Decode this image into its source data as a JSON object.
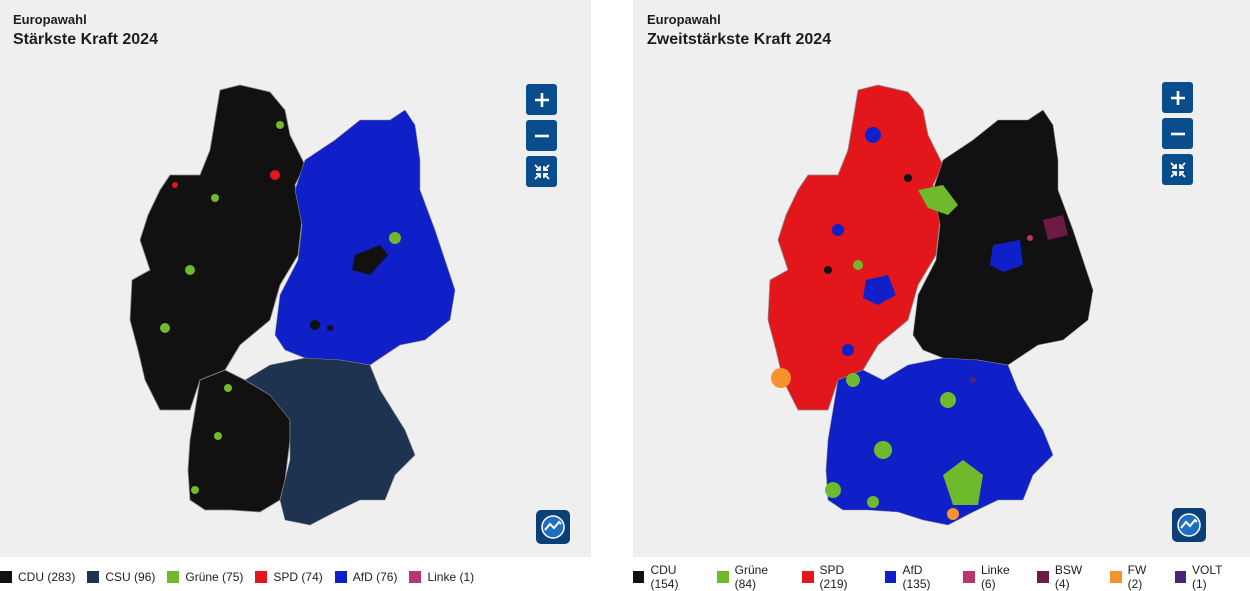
{
  "left": {
    "kicker": "Europawahl",
    "title": "Stärkste Kraft 2024",
    "controls": {
      "zoom_in": "plus-icon",
      "zoom_out": "minus-icon",
      "reset": "collapse-icon"
    },
    "legend": [
      {
        "label": "CDU (283)",
        "color": "#111111"
      },
      {
        "label": "CSU (96)",
        "color": "#1e3350"
      },
      {
        "label": "Grüne (75)",
        "color": "#6fba2c"
      },
      {
        "label": "SPD (74)",
        "color": "#e3161b"
      },
      {
        "label": "AfD (76)",
        "color": "#1020c9"
      },
      {
        "label": "Linke (1)",
        "color": "#b7366f"
      }
    ]
  },
  "right": {
    "kicker": "Europawahl",
    "title": "Zweitstärkste Kraft 2024",
    "controls": {
      "zoom_in": "plus-icon",
      "zoom_out": "minus-icon",
      "reset": "collapse-icon"
    },
    "legend": [
      {
        "label": "CDU (154)",
        "color": "#111111"
      },
      {
        "label": "Grüne (84)",
        "color": "#6fba2c"
      },
      {
        "label": "SPD (219)",
        "color": "#e3161b"
      },
      {
        "label": "AfD (135)",
        "color": "#1020c9"
      },
      {
        "label": "Linke (6)",
        "color": "#b7366f"
      },
      {
        "label": "BSW (4)",
        "color": "#6d1a45"
      },
      {
        "label": "FW (2)",
        "color": "#f7932f"
      },
      {
        "label": "VOLT (1)",
        "color": "#4b2377"
      }
    ]
  }
}
